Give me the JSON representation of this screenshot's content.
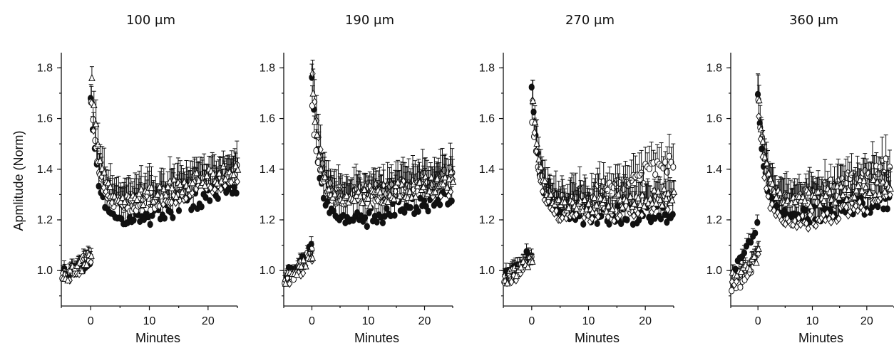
{
  "chart_data": [
    {
      "type": "scatter",
      "title": "100 μm",
      "xlabel": "Minutes",
      "ylabel": "Apmlitude (Norm)",
      "xlim": [
        -5,
        25
      ],
      "ylim": [
        0.86,
        1.86
      ],
      "xticks": [
        0,
        10,
        20
      ],
      "yticks": [
        1.0,
        1.2,
        1.4,
        1.6,
        1.8
      ],
      "series": [
        {
          "marker": "filled-circle",
          "values": {
            "baseline_start": 0.99,
            "baseline_end": 1.04,
            "peak": 1.7,
            "plateau_min": 1.19,
            "end": 1.33
          }
        },
        {
          "marker": "open-circle",
          "values": {
            "baseline_start": 0.98,
            "baseline_end": 1.06,
            "peak": 1.72,
            "plateau_min": 1.24,
            "end": 1.4
          }
        },
        {
          "marker": "open-diamond",
          "values": {
            "baseline_start": 0.97,
            "baseline_end": 1.05,
            "peak": 1.69,
            "plateau_min": 1.26,
            "end": 1.37
          }
        },
        {
          "marker": "open-triangle",
          "values": {
            "baseline_start": 0.98,
            "baseline_end": 1.05,
            "peak": 1.81,
            "plateau_min": 1.27,
            "end": 1.41
          }
        }
      ]
    },
    {
      "type": "scatter",
      "title": "190 μm",
      "xlabel": "Minutes",
      "ylabel": "",
      "xlim": [
        -5,
        25
      ],
      "ylim": [
        0.86,
        1.86
      ],
      "xticks": [
        0,
        10,
        20
      ],
      "yticks": [
        1.0,
        1.2,
        1.4,
        1.6,
        1.8
      ],
      "series": [
        {
          "marker": "filled-circle",
          "values": {
            "baseline_start": 0.98,
            "baseline_end": 1.09,
            "peak": 1.8,
            "plateau_min": 1.19,
            "end": 1.3
          }
        },
        {
          "marker": "open-circle",
          "values": {
            "baseline_start": 0.97,
            "baseline_end": 1.07,
            "peak": 1.66,
            "plateau_min": 1.27,
            "end": 1.38
          }
        },
        {
          "marker": "open-diamond",
          "values": {
            "baseline_start": 0.96,
            "baseline_end": 1.06,
            "peak": 1.81,
            "plateau_min": 1.3,
            "end": 1.33
          }
        },
        {
          "marker": "open-triangle",
          "values": {
            "baseline_start": 0.97,
            "baseline_end": 1.06,
            "peak": 1.73,
            "plateau_min": 1.27,
            "end": 1.36
          }
        }
      ]
    },
    {
      "type": "scatter",
      "title": "270 μm",
      "xlabel": "Minutes",
      "ylabel": "",
      "xlim": [
        -5,
        25
      ],
      "ylim": [
        0.86,
        1.86
      ],
      "xticks": [
        0,
        10,
        20
      ],
      "yticks": [
        1.0,
        1.2,
        1.4,
        1.6,
        1.8
      ],
      "series": [
        {
          "marker": "filled-circle",
          "values": {
            "baseline_start": 0.98,
            "baseline_end": 1.08,
            "peak": 1.78,
            "plateau_min": 1.22,
            "end": 1.22
          }
        },
        {
          "marker": "open-circle",
          "values": {
            "baseline_start": 0.97,
            "baseline_end": 1.04,
            "peak": 1.62,
            "plateau_min": 1.27,
            "end": 1.43
          }
        },
        {
          "marker": "open-diamond",
          "values": {
            "baseline_start": 0.96,
            "baseline_end": 1.05,
            "peak": 1.7,
            "plateau_min": 1.2,
            "end": 1.28
          }
        },
        {
          "marker": "open-triangle",
          "values": {
            "baseline_start": 0.97,
            "baseline_end": 1.05,
            "peak": 1.72,
            "plateau_min": 1.25,
            "end": 1.3
          }
        }
      ]
    },
    {
      "type": "scatter",
      "title": "360 μm",
      "xlabel": "Minutes",
      "ylabel": "",
      "xlim": [
        -5,
        25
      ],
      "ylim": [
        0.86,
        1.86
      ],
      "xticks": [
        0,
        10,
        20
      ],
      "yticks": [
        1.0,
        1.2,
        1.4,
        1.6,
        1.8
      ],
      "series": [
        {
          "marker": "filled-circle",
          "values": {
            "baseline_start": 0.99,
            "baseline_end": 1.19,
            "peak": 1.72,
            "plateau_min": 1.21,
            "end": 1.28
          }
        },
        {
          "marker": "open-circle",
          "values": {
            "baseline_start": 0.93,
            "baseline_end": 1.06,
            "peak": 1.71,
            "plateau_min": 1.27,
            "end": 1.42
          }
        },
        {
          "marker": "open-diamond",
          "values": {
            "baseline_start": 0.96,
            "baseline_end": 1.05,
            "peak": 1.65,
            "plateau_min": 1.18,
            "end": 1.3
          }
        },
        {
          "marker": "open-triangle",
          "values": {
            "baseline_start": 0.97,
            "baseline_end": 1.06,
            "peak": 1.7,
            "plateau_min": 1.27,
            "end": 1.35
          }
        }
      ]
    }
  ]
}
